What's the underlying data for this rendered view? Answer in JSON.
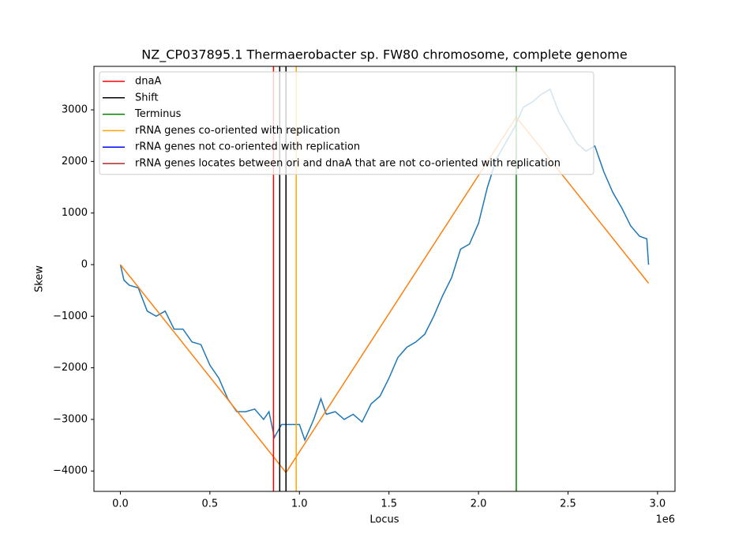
{
  "chart_data": {
    "type": "line",
    "title": "NZ_CP037895.1 Thermaerobacter sp. FW80 chromosome, complete genome",
    "xlabel": "Locus",
    "ylabel": "Skew",
    "x_offset_label": "1e6",
    "xlim": [
      -147500,
      3097500
    ],
    "xticks": [
      {
        "value": 0,
        "label": "0.0"
      },
      {
        "value": 500000,
        "label": "0.5"
      },
      {
        "value": 1000000,
        "label": "1.0"
      },
      {
        "value": 1500000,
        "label": "1.5"
      },
      {
        "value": 2000000,
        "label": "2.0"
      },
      {
        "value": 2500000,
        "label": "2.5"
      },
      {
        "value": 3000000,
        "label": "3.0"
      }
    ],
    "ylim": [
      -4395,
      3843
    ],
    "yticks": [
      {
        "value": -4000,
        "label": "−4000"
      },
      {
        "value": -3000,
        "label": "−3000"
      },
      {
        "value": -2000,
        "label": "−2000"
      },
      {
        "value": -1000,
        "label": "−1000"
      },
      0,
      1000,
      2000,
      3000
    ],
    "legend": "upper left",
    "series": [
      {
        "color": "#1f77b4",
        "x": [
          0,
          20000,
          50000,
          100000,
          150000,
          200000,
          250000,
          300000,
          350000,
          400000,
          450000,
          500000,
          550000,
          600000,
          650000,
          700000,
          750000,
          800000,
          830000,
          860000,
          900000,
          950000,
          1000000,
          1030000,
          1080000,
          1120000,
          1150000,
          1200000,
          1250000,
          1300000,
          1350000,
          1400000,
          1450000,
          1500000,
          1550000,
          1600000,
          1650000,
          1700000,
          1750000,
          1800000,
          1850000,
          1900000,
          1950000,
          2000000,
          2050000,
          2100000,
          2150000,
          2200000,
          2250000,
          2300000,
          2350000,
          2400000,
          2450000,
          2500000,
          2550000,
          2600000,
          2650000,
          2700000,
          2750000,
          2800000,
          2850000,
          2900000,
          2940000,
          2950000
        ],
        "values": [
          0,
          -300,
          -400,
          -450,
          -900,
          -1000,
          -900,
          -1250,
          -1250,
          -1500,
          -1550,
          -1950,
          -2200,
          -2600,
          -2850,
          -2850,
          -2800,
          -3000,
          -2850,
          -3350,
          -3100,
          -3100,
          -3100,
          -3400,
          -3000,
          -2600,
          -2900,
          -2850,
          -3000,
          -2900,
          -3050,
          -2700,
          -2550,
          -2200,
          -1800,
          -1600,
          -1500,
          -1350,
          -1000,
          -600,
          -250,
          300,
          400,
          800,
          1500,
          2050,
          2350,
          2650,
          3050,
          3150,
          3300,
          3400,
          2950,
          2650,
          2350,
          2200,
          2300,
          1800,
          1400,
          1100,
          750,
          550,
          500,
          0
        ]
      },
      {
        "color": "#ff7f0e",
        "x": [
          0,
          925000,
          2211000,
          2950000
        ],
        "values": [
          0,
          -4030,
          2860,
          -360
        ]
      }
    ],
    "vlines": [
      {
        "name": "dnaA",
        "color": "red",
        "x": [
          855000
        ]
      },
      {
        "name": "Shift",
        "color": "black",
        "x": [
          890000,
          925000
        ]
      },
      {
        "name": "Terminus",
        "color": "green",
        "x": [
          2211000
        ]
      },
      {
        "name": "rRNA genes co-oriented with replication",
        "color": "orange",
        "x": [
          982000
        ]
      },
      {
        "name": "rRNA genes not co-oriented with replication",
        "color": "blue",
        "x": []
      },
      {
        "name": "rRNA genes locates between ori and dnaA that are not co-oriented with replication",
        "color": "brown",
        "x": []
      }
    ]
  }
}
